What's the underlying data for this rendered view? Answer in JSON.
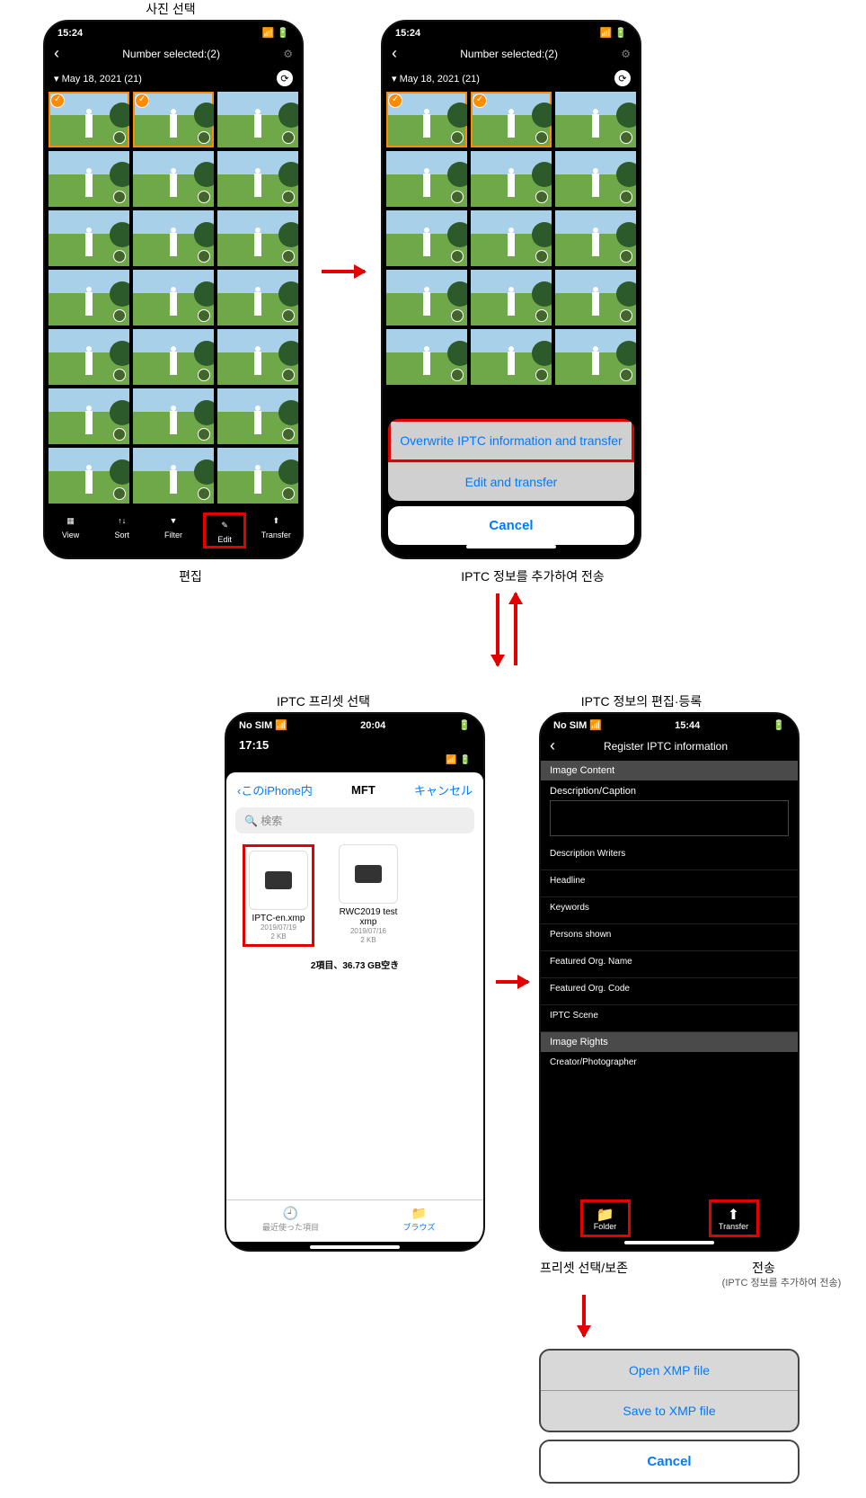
{
  "labels": {
    "top_left": "사진 선택",
    "below_left": "편집",
    "below_right": "IPTC 정보를 추가하여 전송",
    "picker_title": "IPTC 프리셋 선택",
    "form_title_label": "IPTC 정보의 편집·등록",
    "preset_label": "프리셋 선택/보존",
    "transfer_label": "전송",
    "transfer_sub": "(IPTC 정보를 추가하여 전송)"
  },
  "phone1": {
    "time": "15:24",
    "title": "Number selected:(2)",
    "date": "May 18, 2021 (21)",
    "bottom": {
      "view": "View",
      "sort": "Sort",
      "filter": "Filter",
      "edit": "Edit",
      "transfer": "Transfer"
    }
  },
  "sheet": {
    "opt1": "Overwrite IPTC information and transfer",
    "opt2": "Edit and transfer",
    "cancel": "Cancel"
  },
  "picker": {
    "status_left": "No SIM",
    "status_time": "20:04",
    "inner_time": "17:15",
    "back": "このiPhone内",
    "center": "MFT",
    "right": "キャンセル",
    "search": "検索",
    "file1_name": "IPTC-en.xmp",
    "file1_date": "2019/07/19",
    "file1_size": "2 KB",
    "file2_name": "RWC2019 test xmp",
    "file2_date": "2019/07/16",
    "file2_size": "2 KB",
    "summary": "2項目、36.73 GB空き",
    "tab1": "最近使った項目",
    "tab2": "ブラウズ"
  },
  "form": {
    "status_left": "No SIM",
    "status_time": "15:44",
    "title": "Register IPTC information",
    "sect1": "Image Content",
    "f_desc": "Description/Caption",
    "f_writers": "Description Writers",
    "f_headline": "Headline",
    "f_keywords": "Keywords",
    "f_persons": "Persons shown",
    "f_orgname": "Featured Org. Name",
    "f_orgcode": "Featured Org. Code",
    "f_scene": "IPTC Scene",
    "sect2": "Image Rights",
    "f_creator": "Creator/Photographer",
    "btn_folder": "Folder",
    "btn_transfer": "Transfer"
  },
  "smallsheet": {
    "open": "Open XMP file",
    "save": "Save to XMP file",
    "cancel": "Cancel"
  }
}
